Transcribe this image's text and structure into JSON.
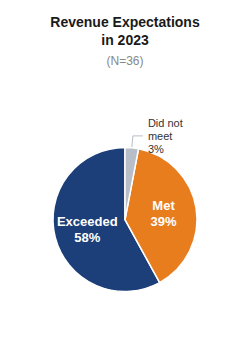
{
  "chart_data": {
    "type": "pie",
    "title": "Revenue Expectations\nin 2023",
    "subtitle": "(N=36)",
    "categories": [
      "Exceeded",
      "Met",
      "Did not\nmeet"
    ],
    "values": [
      58,
      39,
      3
    ],
    "value_labels": [
      "58%",
      "39%",
      "3%"
    ],
    "colors": [
      "#1c3f7a",
      "#e87d1e",
      "#b8bec7"
    ],
    "data_labels": true
  }
}
